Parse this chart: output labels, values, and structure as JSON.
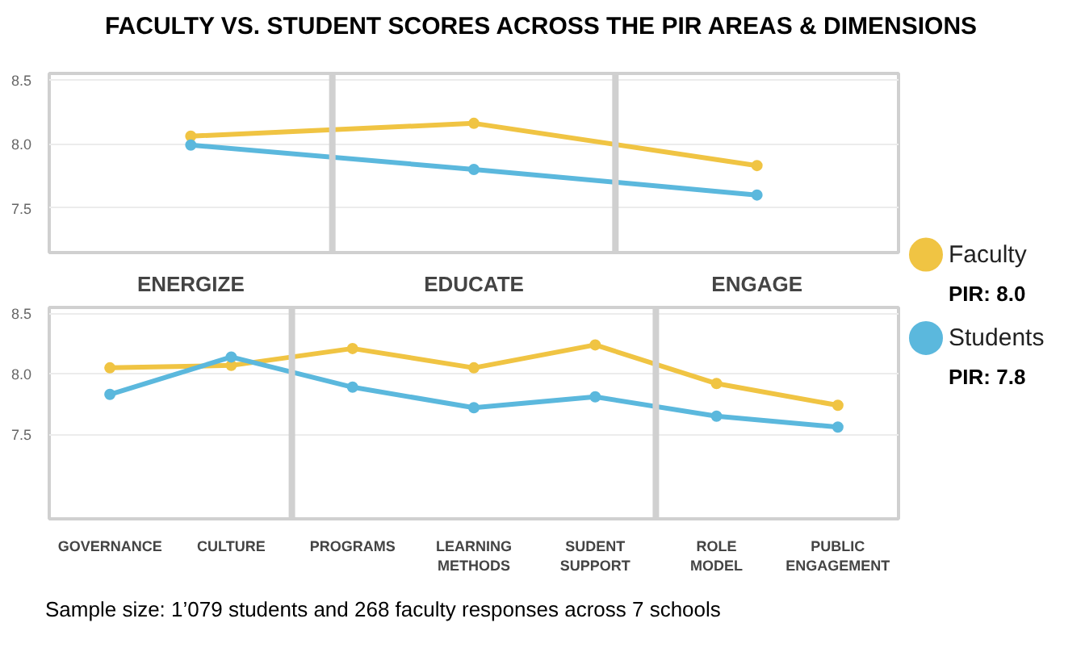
{
  "chart_data": [
    {
      "type": "line",
      "title": "FACULTY VS. STUDENT SCORES ACROSS THE PIR AREAS & DIMENSIONS",
      "categories": [
        "ENERGIZE",
        "EDUCATE",
        "ENGAGE"
      ],
      "series": [
        {
          "name": "Faculty",
          "color": "#f0c443",
          "values": [
            8.06,
            8.16,
            7.83
          ]
        },
        {
          "name": "Students",
          "color": "#5bb8dd",
          "values": [
            7.99,
            7.8,
            7.6
          ]
        }
      ],
      "annotations": [
        "PIR: 8.0",
        "PIR: 7.8"
      ],
      "ylim": [
        7.15,
        8.55
      ],
      "yticks": [
        {
          "value": 7.5,
          "label": "7.5"
        },
        {
          "value": 8,
          "label": "8.0"
        },
        {
          "value": 8.5,
          "label": "8.5"
        }
      ],
      "grid": "y",
      "legend": "right",
      "marker": "circle",
      "line_style": "solid"
    },
    {
      "type": "line",
      "categories": [
        "GOVERNANCE",
        "CULTURE",
        "PROGRAMS",
        "LEARNING\nMETHODS",
        "SUDENT\nSUPPORT",
        "ROLE\nMODEL",
        "PUBLIC\nENGAGEMENT"
      ],
      "series": [
        {
          "color": "#f0c443",
          "values": [
            8.05,
            8.07,
            8.21,
            8.05,
            8.24,
            7.92,
            7.74
          ]
        },
        {
          "color": "#5bb8dd",
          "values": [
            7.83,
            8.14,
            7.89,
            7.72,
            7.81,
            7.65,
            7.56
          ]
        }
      ],
      "annotations": [
        "Sample size: 1’079 students and 268 faculty responses across 7 schools"
      ],
      "ylim": [
        6.8,
        8.55
      ],
      "yticks": [
        {
          "value": 7.5,
          "label": "7.5"
        },
        {
          "value": 8,
          "label": "8.0"
        },
        {
          "value": 8.5,
          "label": "8.5"
        }
      ],
      "grid": "y",
      "marker": "circle",
      "line_style": "solid"
    }
  ]
}
